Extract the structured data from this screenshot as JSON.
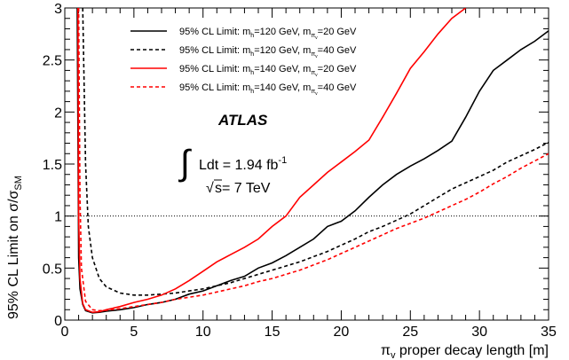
{
  "chart_data": {
    "type": "line",
    "xlabel": "π_v proper decay length [m]",
    "xlabel_parts": {
      "pi": "π",
      "sub": "v",
      "rest": " proper decay length [m]"
    },
    "ylabel": "95% CL Limit on σ/σ_SM",
    "ylabel_parts": {
      "main": "95% CL Limit on σ/σ",
      "sub": "SM"
    },
    "xlim": [
      0,
      35
    ],
    "ylim": [
      0,
      3
    ],
    "xticks": [
      "0",
      "5",
      "10",
      "15",
      "20",
      "25",
      "30",
      "35"
    ],
    "xtick_values": [
      0,
      5,
      10,
      15,
      20,
      25,
      30,
      35
    ],
    "yticks": [
      "0",
      "0.5",
      "1",
      "1.5",
      "2",
      "2.5",
      "3"
    ],
    "ytick_values": [
      0,
      0.5,
      1,
      1.5,
      2,
      2.5,
      3
    ],
    "reference_line_y": 1,
    "legend_position": "top-right",
    "annotation": {
      "experiment": "ATLAS",
      "lumi_prefix": "Ldt = 1.94 fb",
      "lumi_sup": "-1",
      "energy": "s= 7 TeV"
    },
    "series": [
      {
        "name": "95% CL Limit: m_h=120 GeV, m_π_v=20 GeV",
        "legend_parts": {
          "a": "95% CL Limit: m",
          "a_sub": "h",
          "b": "=120 GeV, m",
          "b_sub": "π",
          "b_sub2": "v",
          "c": "=20 GeV"
        },
        "color": "#000000",
        "dashed": false,
        "x": [
          0.9,
          1.0,
          1.1,
          1.3,
          1.5,
          2.0,
          2.5,
          3.0,
          4.0,
          5.0,
          6.0,
          7.0,
          8.0,
          9.0,
          10.0,
          11.0,
          12.0,
          13.0,
          14.0,
          15.0,
          16.0,
          17.0,
          18.0,
          19.0,
          20.0,
          21.0,
          22.0,
          23.0,
          24.0,
          25.0,
          26.0,
          27.0,
          28.0,
          29.0,
          30.0,
          31.0,
          32.0,
          33.0,
          34.0,
          35.0
        ],
        "y": [
          3.0,
          0.6,
          0.3,
          0.15,
          0.09,
          0.07,
          0.075,
          0.085,
          0.1,
          0.12,
          0.15,
          0.17,
          0.2,
          0.25,
          0.28,
          0.33,
          0.38,
          0.42,
          0.5,
          0.55,
          0.62,
          0.7,
          0.78,
          0.9,
          0.95,
          1.05,
          1.18,
          1.3,
          1.4,
          1.48,
          1.55,
          1.63,
          1.72,
          1.95,
          2.2,
          2.4,
          2.5,
          2.6,
          2.68,
          2.78
        ]
      },
      {
        "name": "95% CL Limit: m_h=120 GeV, m_π_v=40 GeV",
        "legend_parts": {
          "a": "95% CL Limit: m",
          "a_sub": "h",
          "b": "=120 GeV, m",
          "b_sub": "π",
          "b_sub2": "v",
          "c": "=40 GeV"
        },
        "color": "#000000",
        "dashed": true,
        "x": [
          1.3,
          1.5,
          1.7,
          2.0,
          2.5,
          3.0,
          4.0,
          5.0,
          6.0,
          7.0,
          8.0,
          9.0,
          10.0,
          11.0,
          12.0,
          13.0,
          14.0,
          15.0,
          16.0,
          17.0,
          18.0,
          19.0,
          20.0,
          21.0,
          22.0,
          23.0,
          24.0,
          25.0,
          26.0,
          27.0,
          28.0,
          29.0,
          30.0,
          31.0,
          32.0,
          33.0,
          34.0,
          35.0
        ],
        "y": [
          3.0,
          1.5,
          0.9,
          0.6,
          0.4,
          0.32,
          0.26,
          0.24,
          0.24,
          0.25,
          0.26,
          0.28,
          0.3,
          0.33,
          0.36,
          0.4,
          0.44,
          0.48,
          0.52,
          0.56,
          0.61,
          0.66,
          0.72,
          0.78,
          0.85,
          0.9,
          0.96,
          1.02,
          1.1,
          1.18,
          1.26,
          1.32,
          1.38,
          1.44,
          1.52,
          1.58,
          1.64,
          1.71
        ]
      },
      {
        "name": "95% CL Limit: m_h=140 GeV, m_π_v=20 GeV",
        "legend_parts": {
          "a": "95% CL Limit: m",
          "a_sub": "h",
          "b": "=140 GeV, m",
          "b_sub": "π",
          "b_sub2": "v",
          "c": "=20 GeV"
        },
        "color": "#ff0000",
        "dashed": false,
        "x": [
          0.95,
          1.0,
          1.1,
          1.3,
          1.5,
          2.0,
          2.5,
          3.0,
          4.0,
          5.0,
          6.0,
          7.0,
          8.0,
          9.0,
          10.0,
          11.0,
          12.0,
          13.0,
          14.0,
          15.0,
          16.0,
          17.0,
          18.0,
          19.0,
          20.0,
          21.0,
          22.0,
          23.0,
          24.0,
          25.0,
          26.0,
          27.0,
          28.0,
          29.0
        ],
        "y": [
          3.0,
          1.0,
          0.4,
          0.16,
          0.1,
          0.075,
          0.08,
          0.1,
          0.13,
          0.17,
          0.2,
          0.24,
          0.3,
          0.38,
          0.47,
          0.56,
          0.63,
          0.7,
          0.78,
          0.9,
          1.0,
          1.18,
          1.3,
          1.42,
          1.52,
          1.62,
          1.73,
          1.95,
          2.18,
          2.42,
          2.58,
          2.75,
          2.9,
          3.0
        ]
      },
      {
        "name": "95% CL Limit: m_h=140 GeV, m_π_v=40 GeV",
        "legend_parts": {
          "a": "95% CL Limit: m",
          "a_sub": "h",
          "b": "=140 GeV, m",
          "b_sub": "π",
          "b_sub2": "v",
          "c": "=40 GeV"
        },
        "color": "#ff0000",
        "dashed": true,
        "x": [
          1.0,
          1.1,
          1.2,
          1.5,
          2.0,
          2.5,
          3.0,
          4.0,
          5.0,
          6.0,
          7.0,
          8.0,
          9.0,
          10.0,
          11.0,
          12.0,
          13.0,
          14.0,
          15.0,
          16.0,
          17.0,
          18.0,
          19.0,
          20.0,
          21.0,
          22.0,
          23.0,
          24.0,
          25.0,
          26.0,
          27.0,
          28.0,
          29.0,
          30.0,
          31.0,
          32.0,
          33.0,
          34.0,
          35.0
        ],
        "y": [
          3.0,
          1.2,
          0.5,
          0.18,
          0.1,
          0.09,
          0.095,
          0.11,
          0.13,
          0.15,
          0.17,
          0.2,
          0.22,
          0.24,
          0.27,
          0.3,
          0.33,
          0.37,
          0.4,
          0.44,
          0.48,
          0.53,
          0.58,
          0.64,
          0.7,
          0.76,
          0.82,
          0.88,
          0.93,
          0.98,
          1.04,
          1.1,
          1.16,
          1.23,
          1.31,
          1.38,
          1.46,
          1.53,
          1.6
        ]
      }
    ]
  }
}
